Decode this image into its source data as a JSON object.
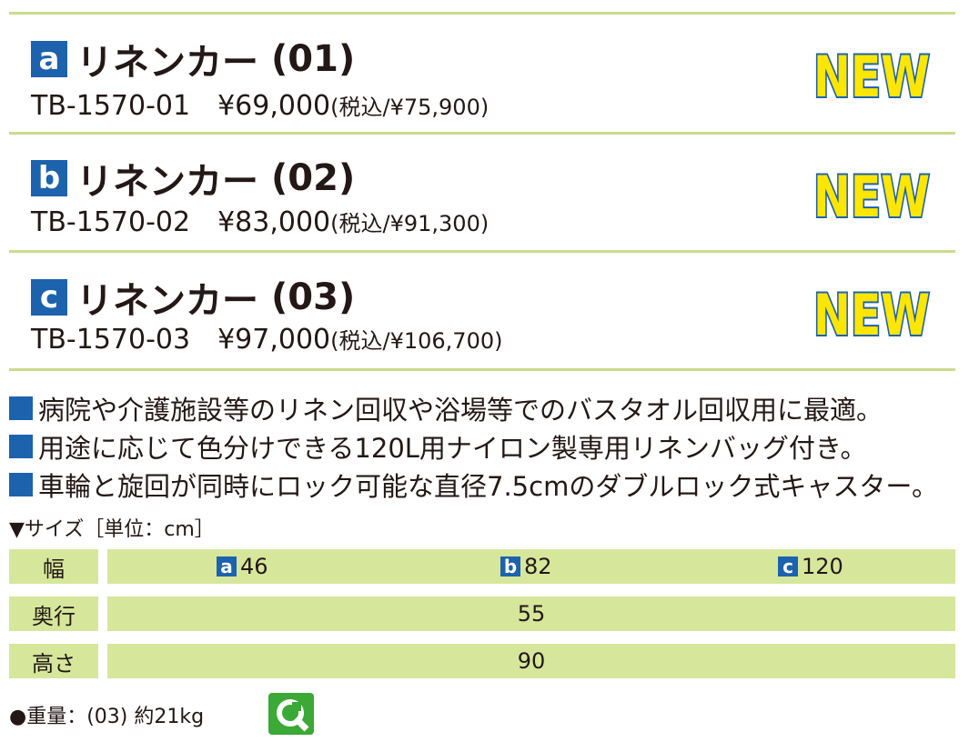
{
  "products": [
    {
      "badge": "a",
      "name": "リネンカー",
      "variant": "(01)",
      "code": "TB-1570-01",
      "price": "¥69,000",
      "tax": "(税込/¥75,900)",
      "tag": "NEW"
    },
    {
      "badge": "b",
      "name": "リネンカー",
      "variant": "(02)",
      "code": "TB-1570-02",
      "price": "¥83,000",
      "tax": "(税込/¥91,300)",
      "tag": "NEW"
    },
    {
      "badge": "c",
      "name": "リネンカー",
      "variant": "(03)",
      "code": "TB-1570-03",
      "price": "¥97,000",
      "tax": "(税込/¥106,700)",
      "tag": "NEW"
    }
  ],
  "features": [
    "病院や介護施設等のリネン回収や浴場等でのバスタオル回収用に最適。",
    "用途に応じて色分けできる120L用ナイロン製専用リネンバッグ付き。",
    "車輪と旋回が同時にロック可能な直径7.5cmのダブルロック式キャスター。"
  ],
  "size_heading": "▼サイズ［単位：cm］",
  "table": {
    "rows": [
      {
        "label": "幅",
        "cells": [
          {
            "badge": "a",
            "value": 46
          },
          {
            "badge": "b",
            "value": 82
          },
          {
            "badge": "c",
            "value": 120
          }
        ]
      },
      {
        "label": "奥行",
        "cells": [
          {
            "value": 55
          }
        ]
      },
      {
        "label": "高さ",
        "cells": [
          {
            "value": 90
          }
        ]
      }
    ]
  },
  "weight": "●重量：(03) 約21kg"
}
